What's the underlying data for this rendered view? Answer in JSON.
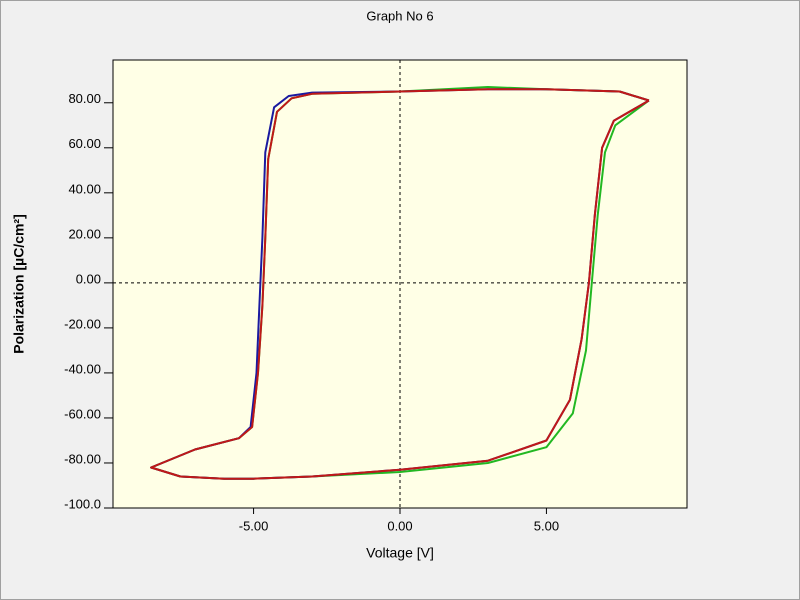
{
  "chart_data": {
    "type": "line",
    "title": "Graph No 6",
    "xlabel": "Voltage [V]",
    "ylabel": "Polarization [µC/cm²]",
    "xlim": [
      -9.8,
      9.8
    ],
    "ylim": [
      -100,
      99
    ],
    "xticks": [
      {
        "value": -5,
        "label": "-5.00"
      },
      {
        "value": 0,
        "label": "0.00"
      },
      {
        "value": 5,
        "label": "5.00"
      }
    ],
    "yticks": [
      {
        "value": 80,
        "label": "80.00"
      },
      {
        "value": 60,
        "label": "60.00"
      },
      {
        "value": 40,
        "label": "40.00"
      },
      {
        "value": 20,
        "label": "20.00"
      },
      {
        "value": 0,
        "label": "0.00"
      },
      {
        "value": -20,
        "label": "-20.00"
      },
      {
        "value": -40,
        "label": "-40.00"
      },
      {
        "value": -60,
        "label": "-60.00"
      },
      {
        "value": -80,
        "label": "-80.00"
      },
      {
        "value": -100,
        "label": "-100.0"
      }
    ],
    "zero_lines": true,
    "series": [
      {
        "color": "#22b822",
        "x": [
          8.5,
          7.5,
          5,
          3,
          0,
          -3,
          -3.7,
          -4.2,
          -4.5,
          -4.6,
          -4.7,
          -4.85,
          -5.05,
          -5.5,
          -7,
          -8.5,
          -7.5,
          -6,
          -5,
          -3,
          0,
          3,
          5,
          5.9,
          6.35,
          6.55,
          6.75,
          7.0,
          7.35,
          8.5
        ],
        "values": [
          81,
          85,
          86,
          87,
          85,
          84,
          82,
          76,
          55,
          20,
          -10,
          -40,
          -64,
          -69,
          -74,
          -82,
          -86,
          -87,
          -87,
          -86,
          -84,
          -80,
          -73,
          -58,
          -30,
          0,
          30,
          58,
          70,
          81
        ]
      },
      {
        "color": "#1a1aa0",
        "x": [
          8.5,
          7.5,
          5,
          3,
          0,
          -3,
          -3.8,
          -4.3,
          -4.6,
          -4.7,
          -4.8,
          -4.9,
          -5.1,
          -5.5,
          -7,
          -8.5,
          -7.5,
          -6,
          -5,
          -3,
          0,
          3,
          5,
          5.8,
          6.2,
          6.45,
          6.65,
          6.9,
          7.3,
          8.5
        ],
        "values": [
          81,
          85,
          86,
          86,
          85,
          84.5,
          83,
          78,
          58,
          20,
          -10,
          -40,
          -64,
          -69,
          -74,
          -82,
          -86,
          -87,
          -87,
          -86,
          -83,
          -79,
          -70,
          -52,
          -25,
          0,
          30,
          60,
          72,
          81
        ]
      },
      {
        "color": "#c01818",
        "x": [
          8.5,
          7.5,
          5,
          3,
          0,
          -3,
          -3.7,
          -4.2,
          -4.5,
          -4.6,
          -4.7,
          -4.85,
          -5.05,
          -5.5,
          -7,
          -8.5,
          -7.5,
          -6,
          -5,
          -3,
          0,
          3,
          5,
          5.8,
          6.2,
          6.45,
          6.65,
          6.9,
          7.3,
          8.5
        ],
        "values": [
          81,
          85,
          86,
          86,
          85,
          84,
          82,
          76,
          55,
          20,
          -10,
          -40,
          -64,
          -69,
          -74,
          -82,
          -86,
          -87,
          -87,
          -86,
          -83,
          -79,
          -70,
          -52,
          -25,
          0,
          30,
          60,
          72,
          81
        ]
      }
    ]
  }
}
